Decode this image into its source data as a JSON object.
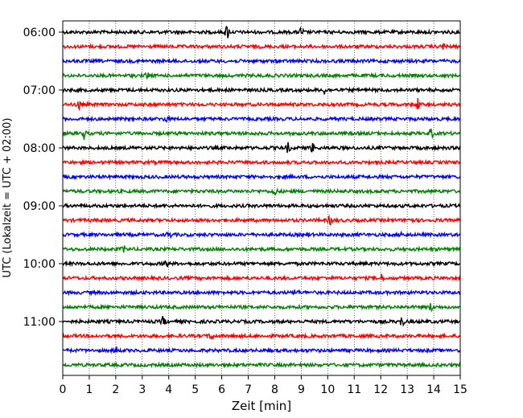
{
  "chart_data": {
    "type": "line",
    "chart_kind": "helicorder",
    "title": "",
    "xlabel": "Zeit  [min]",
    "ylabel": "UTC (Lokalzeit = UTC + 02:00)",
    "xlim": [
      0,
      15
    ],
    "x_ticks": [
      0,
      1,
      2,
      3,
      4,
      5,
      6,
      7,
      8,
      9,
      10,
      11,
      12,
      13,
      14,
      15
    ],
    "y_ticks": [
      {
        "trace_index": 0,
        "label": "06:00"
      },
      {
        "trace_index": 4,
        "label": "07:00"
      },
      {
        "trace_index": 8,
        "label": "08:00"
      },
      {
        "trace_index": 12,
        "label": "09:00"
      },
      {
        "trace_index": 16,
        "label": "10:00"
      },
      {
        "trace_index": 20,
        "label": "11:00"
      }
    ],
    "trace_count": 24,
    "minutes_per_trace": 15,
    "grid": "vertical dotted at every minute",
    "color_cycle": [
      "#000000",
      "#ff0000",
      "#0000ff",
      "#008000"
    ],
    "events": [
      {
        "trace": 0,
        "minute": 6.2,
        "amplitude": 1.0
      },
      {
        "trace": 0,
        "minute": 9.0,
        "amplitude": 0.6
      },
      {
        "trace": 1,
        "minute": 14.4,
        "amplitude": 0.5
      },
      {
        "trace": 3,
        "minute": 3.2,
        "amplitude": 0.4
      },
      {
        "trace": 4,
        "minute": 9.9,
        "amplitude": 0.6
      },
      {
        "trace": 5,
        "minute": 0.6,
        "amplitude": 0.7
      },
      {
        "trace": 5,
        "minute": 13.4,
        "amplitude": 0.8
      },
      {
        "trace": 6,
        "minute": 3.9,
        "amplitude": 0.4
      },
      {
        "trace": 7,
        "minute": 0.8,
        "amplitude": 0.7
      },
      {
        "trace": 7,
        "minute": 13.9,
        "amplitude": 0.6
      },
      {
        "trace": 8,
        "minute": 8.5,
        "amplitude": 0.6
      },
      {
        "trace": 8,
        "minute": 9.4,
        "amplitude": 0.6
      },
      {
        "trace": 11,
        "minute": 8.0,
        "amplitude": 0.5
      },
      {
        "trace": 13,
        "minute": 10.1,
        "amplitude": 0.6
      },
      {
        "trace": 13,
        "minute": 13.1,
        "amplitude": 0.5
      },
      {
        "trace": 14,
        "minute": 4.0,
        "amplitude": 0.5
      },
      {
        "trace": 14,
        "minute": 12.8,
        "amplitude": 0.4
      },
      {
        "trace": 15,
        "minute": 2.3,
        "amplitude": 0.4
      },
      {
        "trace": 16,
        "minute": 3.9,
        "amplitude": 0.5
      },
      {
        "trace": 17,
        "minute": 12.0,
        "amplitude": 0.5
      },
      {
        "trace": 18,
        "minute": 8.8,
        "amplitude": 0.5
      },
      {
        "trace": 19,
        "minute": 13.9,
        "amplitude": 0.5
      },
      {
        "trace": 20,
        "minute": 3.8,
        "amplitude": 0.7
      },
      {
        "trace": 20,
        "minute": 12.8,
        "amplitude": 0.7
      },
      {
        "trace": 21,
        "minute": 5.6,
        "amplitude": 0.5
      },
      {
        "trace": 22,
        "minute": 2.0,
        "amplitude": 0.5
      }
    ]
  }
}
